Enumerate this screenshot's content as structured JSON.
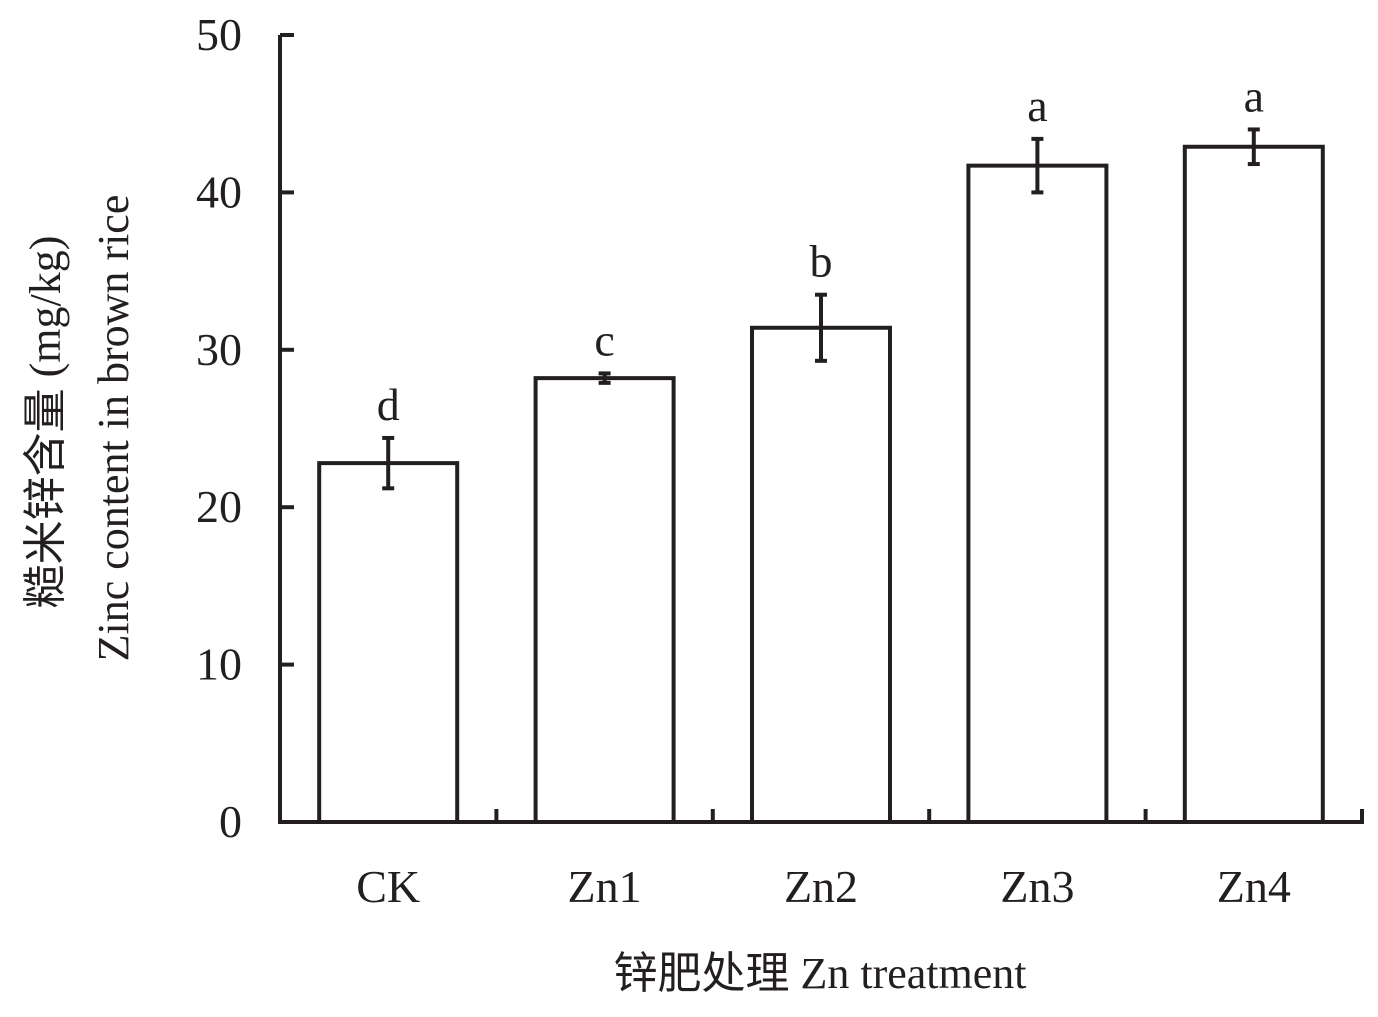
{
  "chart_data": {
    "type": "bar",
    "categories": [
      "CK",
      "Zn1",
      "Zn2",
      "Zn3",
      "Zn4"
    ],
    "values": [
      22.8,
      28.2,
      31.4,
      41.7,
      42.9
    ],
    "errors": [
      1.6,
      0.3,
      2.1,
      1.7,
      1.1
    ],
    "significance_letters": [
      "d",
      "c",
      "b",
      "a",
      "a"
    ],
    "ylim": [
      0,
      50
    ],
    "yticks": [
      0,
      10,
      20,
      30,
      40,
      50
    ],
    "ylabel_line1": "糙米锌含量 (mg/kg)",
    "ylabel_line2": "Zinc content in brown rice",
    "xlabel": "锌肥处理 Zn treatment",
    "grid": false,
    "colors": {
      "bar_fill": "#ffffff",
      "bar_stroke": "#231f20",
      "axis": "#231f20"
    }
  }
}
